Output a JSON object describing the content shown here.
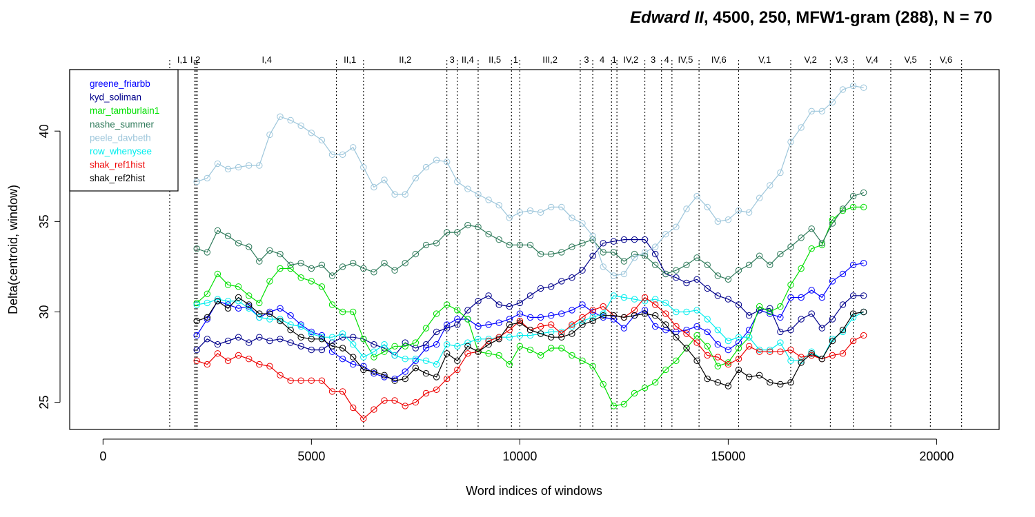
{
  "chart_data": {
    "type": "line",
    "title": {
      "italic_part": "Edward II",
      "rest": ", 4500, 250, MFW1-gram (288), N = 70"
    },
    "xlabel": "Word indices of windows",
    "ylabel": "Delta(centroid, window)",
    "xlim": [
      -800,
      21500
    ],
    "ylim": [
      23.5,
      43.4
    ],
    "x_ticks": [
      0,
      5000,
      10000,
      15000,
      20000
    ],
    "y_ticks": [
      25,
      30,
      35,
      40
    ],
    "grid": false,
    "legend_position": "top-left",
    "x": [
      2250,
      2500,
      2750,
      3000,
      3250,
      3500,
      3750,
      4000,
      4250,
      4500,
      4750,
      5000,
      5250,
      5500,
      5750,
      6000,
      6250,
      6500,
      6750,
      7000,
      7250,
      7500,
      7750,
      8000,
      8250,
      8500,
      8750,
      9000,
      9250,
      9500,
      9750,
      10000,
      10250,
      10500,
      10750,
      11000,
      11250,
      11500,
      11750,
      12000,
      12250,
      12500,
      12750,
      13000,
      13250,
      13500,
      13750,
      14000,
      14250,
      14500,
      14750,
      15000,
      15250,
      15500,
      15750,
      16000,
      16250,
      16500,
      16750,
      17000,
      17250,
      17500,
      17750,
      18000,
      18250
    ],
    "scene_boundaries": [
      {
        "x": 1600,
        "label": "I,1"
      },
      {
        "x": 2200,
        "label": "I,2"
      },
      {
        "x": 2230,
        "label": ""
      },
      {
        "x": 2260,
        "label": "I,4"
      },
      {
        "x": 5600,
        "label": "II,1"
      },
      {
        "x": 6250,
        "label": "II,2"
      },
      {
        "x": 8250,
        "label": "3"
      },
      {
        "x": 8500,
        "label": "II,4"
      },
      {
        "x": 9000,
        "label": "II,5"
      },
      {
        "x": 9800,
        "label": "1"
      },
      {
        "x": 10000,
        "label": "III,2"
      },
      {
        "x": 11450,
        "label": "3"
      },
      {
        "x": 11750,
        "label": "4"
      },
      {
        "x": 12200,
        "label": "1"
      },
      {
        "x": 12330,
        "label": "IV,2"
      },
      {
        "x": 13000,
        "label": "3"
      },
      {
        "x": 13400,
        "label": "4"
      },
      {
        "x": 13650,
        "label": "IV,5"
      },
      {
        "x": 14300,
        "label": "IV,6"
      },
      {
        "x": 15250,
        "label": "V,1"
      },
      {
        "x": 16500,
        "label": "V,2"
      },
      {
        "x": 17450,
        "label": "V,3"
      },
      {
        "x": 18000,
        "label": "V,4"
      },
      {
        "x": 18900,
        "label": "V,5"
      },
      {
        "x": 19850,
        "label": "V,6"
      },
      {
        "x": 20600,
        "label": ""
      }
    ],
    "series": [
      {
        "name": "greene_friarbb",
        "color": "#0000FF",
        "values": [
          28.7,
          29.6,
          30.6,
          30.4,
          30.2,
          30.3,
          29.7,
          30.0,
          30.2,
          29.8,
          29.3,
          28.9,
          28.7,
          27.8,
          27.4,
          27.1,
          27.0,
          26.6,
          26.4,
          26.3,
          26.7,
          27.3,
          28.0,
          28.2,
          29.3,
          29.6,
          29.6,
          29.2,
          29.3,
          29.4,
          29.6,
          29.9,
          29.7,
          29.7,
          29.8,
          29.9,
          30.1,
          30.4,
          30.0,
          29.7,
          29.6,
          29.1,
          29.8,
          30.1,
          29.2,
          29.0,
          28.9,
          29.0,
          29.2,
          28.9,
          28.2,
          27.9,
          28.3,
          29.0,
          30.1,
          29.9,
          29.7,
          30.8,
          30.8,
          31.2,
          30.8,
          31.7,
          32.1,
          32.6,
          32.7
        ]
      },
      {
        "name": "kyd_soliman",
        "color": "#00008B",
        "values": [
          27.9,
          28.5,
          28.2,
          28.4,
          28.6,
          28.3,
          28.6,
          28.4,
          28.5,
          28.3,
          28.1,
          27.9,
          27.9,
          28.3,
          28.6,
          28.6,
          28.5,
          28.2,
          28.0,
          27.6,
          28.3,
          28.0,
          28.2,
          28.9,
          29.1,
          29.3,
          30.1,
          30.6,
          30.9,
          30.4,
          30.3,
          30.5,
          30.9,
          31.3,
          31.4,
          31.7,
          31.9,
          32.3,
          33.1,
          33.8,
          33.9,
          34.0,
          34.0,
          34.0,
          33.2,
          32.1,
          31.9,
          31.6,
          31.8,
          31.3,
          30.9,
          30.7,
          30.4,
          29.8,
          30.1,
          30.2,
          28.9,
          29.0,
          29.6,
          29.9,
          29.1,
          29.6,
          30.4,
          30.9,
          30.9
        ]
      },
      {
        "name": "mar_tamburlain1",
        "color": "#00E000",
        "values": [
          30.5,
          31.0,
          32.1,
          31.5,
          31.4,
          30.9,
          30.5,
          31.7,
          32.4,
          32.4,
          31.9,
          31.7,
          31.4,
          30.4,
          30.0,
          30.0,
          28.5,
          27.5,
          27.8,
          28.1,
          28.1,
          28.3,
          29.1,
          29.9,
          30.4,
          30.1,
          29.6,
          27.8,
          27.7,
          27.6,
          27.1,
          28.1,
          27.9,
          27.6,
          28.0,
          28.0,
          27.6,
          27.3,
          27.0,
          26.0,
          24.8,
          24.9,
          25.5,
          25.8,
          26.1,
          26.8,
          27.3,
          28.0,
          28.7,
          28.1,
          27.0,
          27.2,
          28.0,
          28.6,
          30.3,
          30.0,
          30.3,
          31.5,
          32.4,
          33.5,
          33.7,
          35.1,
          35.6,
          35.8,
          35.8
        ]
      },
      {
        "name": "nashe_summer",
        "color": "#2E7A5A",
        "values": [
          33.5,
          33.3,
          34.5,
          34.2,
          33.8,
          33.6,
          32.8,
          33.4,
          33.2,
          32.6,
          32.7,
          32.4,
          32.6,
          32.0,
          32.5,
          32.7,
          32.4,
          32.2,
          32.7,
          32.3,
          32.7,
          33.2,
          33.7,
          33.8,
          34.4,
          34.4,
          34.8,
          34.7,
          34.3,
          34.0,
          33.7,
          33.7,
          33.7,
          33.2,
          33.2,
          33.3,
          33.6,
          33.8,
          34.0,
          33.3,
          33.3,
          32.8,
          33.2,
          33.1,
          32.6,
          32.1,
          32.3,
          32.6,
          33.0,
          32.6,
          32.0,
          31.8,
          32.3,
          32.6,
          33.1,
          32.6,
          33.2,
          33.6,
          34.1,
          34.6,
          33.8,
          34.9,
          35.7,
          36.4,
          36.6
        ]
      },
      {
        "name": "peele_davbeth",
        "color": "#9DC6DB",
        "values": [
          37.2,
          37.4,
          38.2,
          37.9,
          38.0,
          38.1,
          38.1,
          39.8,
          40.8,
          40.6,
          40.3,
          39.9,
          39.5,
          38.7,
          38.7,
          39.1,
          38.0,
          36.9,
          37.3,
          36.5,
          36.5,
          37.4,
          38.0,
          38.4,
          38.3,
          37.2,
          36.8,
          36.5,
          36.2,
          35.9,
          35.2,
          35.5,
          35.6,
          35.5,
          35.8,
          35.8,
          35.2,
          34.9,
          34.2,
          32.5,
          32.0,
          32.1,
          33.0,
          33.3,
          33.6,
          34.3,
          34.7,
          35.7,
          36.4,
          35.8,
          35.0,
          35.1,
          35.6,
          35.5,
          36.3,
          37.0,
          37.7,
          39.4,
          40.2,
          41.1,
          41.1,
          41.6,
          42.3,
          42.5,
          42.4
        ]
      },
      {
        "name": "row_whenysee",
        "color": "#00EEEE",
        "values": [
          30.4,
          30.5,
          30.7,
          30.6,
          30.6,
          30.2,
          29.7,
          29.6,
          29.6,
          29.3,
          29.2,
          28.8,
          28.6,
          28.6,
          28.8,
          28.2,
          27.5,
          27.8,
          28.2,
          27.6,
          27.4,
          27.4,
          27.3,
          27.1,
          28.2,
          28.1,
          28.3,
          28.5,
          28.5,
          28.6,
          28.6,
          28.7,
          28.7,
          28.8,
          28.9,
          28.9,
          29.2,
          29.5,
          29.7,
          29.9,
          30.9,
          30.8,
          30.7,
          30.6,
          30.7,
          30.5,
          30.0,
          30.0,
          30.1,
          29.6,
          29.0,
          28.4,
          28.6,
          28.6,
          27.9,
          27.9,
          28.3,
          27.3,
          27.3,
          27.8,
          27.4,
          28.5,
          28.9,
          29.7,
          30.0
        ]
      },
      {
        "name": "shak_ref1hist",
        "color": "#EE0000",
        "values": [
          27.3,
          27.1,
          27.7,
          27.3,
          27.6,
          27.4,
          27.1,
          27.0,
          26.5,
          26.2,
          26.2,
          26.2,
          26.2,
          25.6,
          25.6,
          24.7,
          24.1,
          24.6,
          25.1,
          25.1,
          24.8,
          25.0,
          25.5,
          25.7,
          26.3,
          26.8,
          27.7,
          27.8,
          28.4,
          28.6,
          29.0,
          29.5,
          29.0,
          29.2,
          29.3,
          28.8,
          29.3,
          29.7,
          30.1,
          30.3,
          29.8,
          29.7,
          30.1,
          30.8,
          30.4,
          29.9,
          29.2,
          28.8,
          28.3,
          27.6,
          27.5,
          27.1,
          27.4,
          28.1,
          27.8,
          27.8,
          27.8,
          27.9,
          27.5,
          27.6,
          27.4,
          27.6,
          27.7,
          28.4,
          28.7
        ]
      },
      {
        "name": "shak_ref2hist",
        "color": "#000000",
        "values": [
          29.5,
          29.7,
          30.6,
          30.2,
          30.8,
          30.4,
          29.9,
          29.9,
          29.5,
          29.0,
          28.6,
          28.5,
          28.5,
          28.1,
          28.0,
          27.5,
          26.8,
          26.7,
          26.5,
          26.2,
          26.3,
          26.9,
          26.6,
          26.4,
          27.7,
          27.3,
          28.1,
          27.8,
          28.2,
          28.5,
          29.3,
          29.4,
          29.0,
          28.8,
          28.6,
          28.6,
          28.8,
          29.3,
          29.5,
          29.8,
          29.8,
          29.7,
          29.8,
          29.9,
          29.8,
          29.3,
          28.6,
          28.0,
          27.3,
          26.3,
          26.1,
          25.9,
          26.8,
          26.4,
          26.5,
          26.1,
          26.0,
          26.1,
          27.2,
          27.7,
          27.4,
          28.4,
          29.0,
          29.9,
          30.0
        ]
      }
    ]
  }
}
